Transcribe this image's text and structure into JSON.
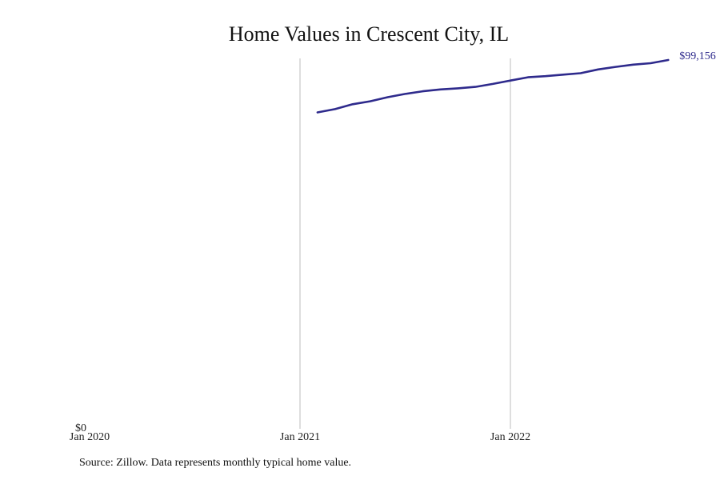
{
  "chart_data": {
    "type": "line",
    "title": "Home Values in Crescent City, IL",
    "xlabel": "",
    "ylabel": "",
    "x_ticks": [
      "Jan 2020",
      "Jan 2021",
      "Jan 2022"
    ],
    "y_ticks": [
      "$0"
    ],
    "ylim": [
      0,
      100000
    ],
    "grid": "vertical lines at Jan 2021 and Jan 2022",
    "series": [
      {
        "color": "#2e2a8c",
        "end_label": "$99,156",
        "points": [
          {
            "x": "2021-02",
            "y": 85000
          },
          {
            "x": "2021-03",
            "y": 85900
          },
          {
            "x": "2021-04",
            "y": 87200
          },
          {
            "x": "2021-05",
            "y": 88000
          },
          {
            "x": "2021-06",
            "y": 89100
          },
          {
            "x": "2021-07",
            "y": 90000
          },
          {
            "x": "2021-08",
            "y": 90700
          },
          {
            "x": "2021-09",
            "y": 91200
          },
          {
            "x": "2021-10",
            "y": 91500
          },
          {
            "x": "2021-11",
            "y": 91900
          },
          {
            "x": "2021-12",
            "y": 92700
          },
          {
            "x": "2022-01",
            "y": 93600
          },
          {
            "x": "2022-02",
            "y": 94500
          },
          {
            "x": "2022-03",
            "y": 94800
          },
          {
            "x": "2022-04",
            "y": 95200
          },
          {
            "x": "2022-05",
            "y": 95600
          },
          {
            "x": "2022-06",
            "y": 96600
          },
          {
            "x": "2022-07",
            "y": 97300
          },
          {
            "x": "2022-08",
            "y": 97900
          },
          {
            "x": "2022-09",
            "y": 98300
          },
          {
            "x": "2022-10",
            "y": 99156
          }
        ]
      }
    ]
  },
  "source_note": "Source: Zillow. Data represents monthly typical home value."
}
